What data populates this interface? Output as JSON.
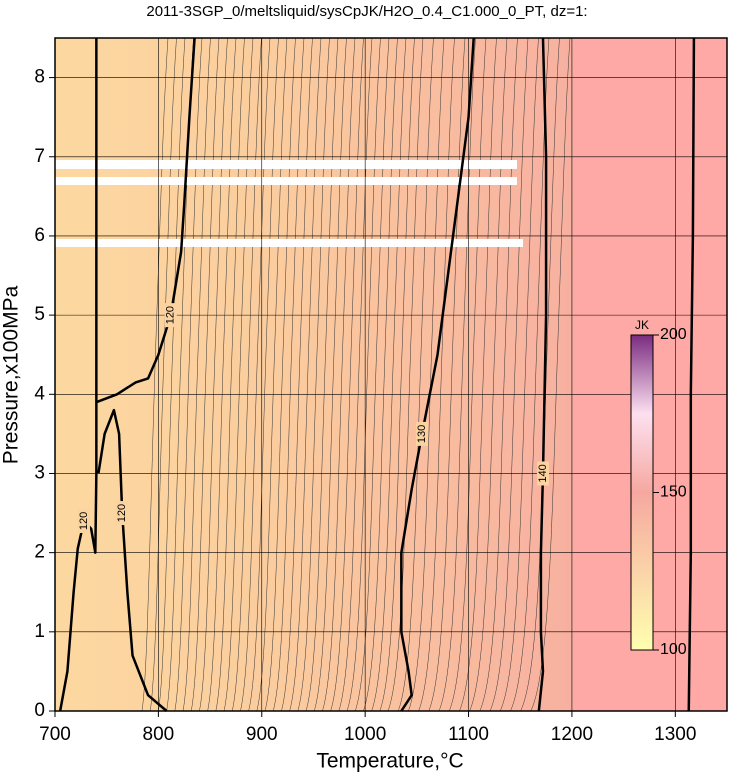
{
  "chart_data": {
    "type": "contour",
    "title": "2011-3SGP_0/meltsliquid/sysCpJK/H2O_0.4_C1.000_0_PT, dz=1:",
    "x_label": "Temperature,°C",
    "y_label": "Pressure,x100MPa",
    "xlim": [
      700,
      1350
    ],
    "ylim": [
      0,
      8.5
    ],
    "xticks": [
      700,
      800,
      900,
      1000,
      1100,
      1200,
      1300
    ],
    "yticks": [
      0,
      1,
      2,
      3,
      4,
      5,
      6,
      7,
      8
    ],
    "grid": true,
    "contours": [
      {
        "level": 120,
        "show_label": true,
        "x": [
          705,
          712,
          718,
          722,
          728,
          735,
          739,
          740,
          740
        ],
        "y": [
          0,
          0.5,
          1.5,
          2.05,
          2.4,
          2.3,
          2.0,
          3,
          8.5
        ]
      },
      {
        "level": 120,
        "show_label": true,
        "x": [
          808,
          790,
          775,
          770,
          765,
          762,
          757,
          748,
          742
        ],
        "y": [
          0,
          0.2,
          0.7,
          1.5,
          2.5,
          3.5,
          3.8,
          3.5,
          3.0
        ]
      },
      {
        "level": 120,
        "show_label": true,
        "x": [
          740,
          760,
          778,
          790,
          800,
          812,
          822,
          825,
          830,
          835
        ],
        "y": [
          3.9,
          4.0,
          4.15,
          4.2,
          4.5,
          5,
          5.8,
          6.4,
          7.5,
          8.5
        ]
      },
      {
        "level": 130,
        "show_label": true,
        "x": [
          1035,
          1045,
          1042,
          1035,
          1035,
          1045,
          1055,
          1070,
          1080,
          1085,
          1090,
          1100,
          1105
        ],
        "y": [
          0,
          0.2,
          0.5,
          1,
          2,
          2.8,
          3.5,
          4.5,
          5.5,
          6,
          6.5,
          7.5,
          8.5
        ]
      },
      {
        "level": 140,
        "show_label": true,
        "x": [
          1168,
          1172,
          1170,
          1170,
          1172,
          1175,
          1175,
          1172
        ],
        "y": [
          0,
          0.5,
          1,
          2,
          3,
          5,
          7,
          8.5
        ]
      },
      {
        "level": 150,
        "show_label": false,
        "x": [
          1313,
          1315,
          1315,
          1317,
          1318
        ],
        "y": [
          0,
          2,
          4,
          6,
          8.5
        ]
      }
    ],
    "colorbar": {
      "label": "JK",
      "lim": [
        100,
        200
      ],
      "ticks": [
        100,
        150,
        200
      ]
    }
  }
}
